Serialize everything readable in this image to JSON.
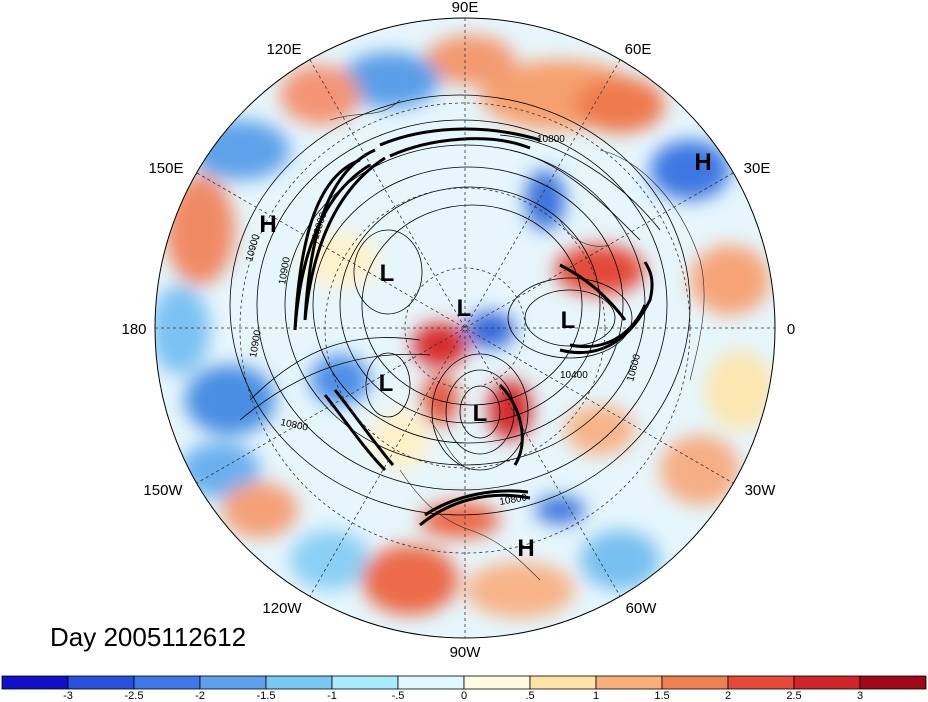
{
  "map": {
    "projection": "north-polar-stereographic",
    "longitude_labels": {
      "top": "90E",
      "top_left": "120E",
      "top_right": "60E",
      "upper_left": "150E",
      "upper_right": "30E",
      "left": "180",
      "right": "0",
      "lower_left": "150W",
      "lower_right": "30W",
      "bottom_left": "120W",
      "bottom_right": "60W",
      "bottom": "90W"
    },
    "contour_labels": [
      "10800",
      "10800",
      "10900",
      "10900",
      "10900",
      "10800",
      "10400",
      "10600",
      "10800"
    ],
    "pressure_centers": [
      {
        "label": "H",
        "kind": "high"
      },
      {
        "label": "H",
        "kind": "high"
      },
      {
        "label": "H",
        "kind": "high"
      },
      {
        "label": "L",
        "kind": "low"
      },
      {
        "label": "L",
        "kind": "low"
      },
      {
        "label": "L",
        "kind": "low"
      },
      {
        "label": "L",
        "kind": "low"
      },
      {
        "label": "L",
        "kind": "low"
      }
    ],
    "title": "Day 2005112612"
  },
  "colorbar": {
    "colors": [
      "#1010c8",
      "#2850e0",
      "#3c78ea",
      "#5ca0f0",
      "#78c8f4",
      "#a8ecfc",
      "#e0f8ff",
      "#fffae0",
      "#fce4a4",
      "#f8b078",
      "#f08050",
      "#e84838",
      "#d02428",
      "#a00818"
    ],
    "tick_labels": [
      "-3",
      "-2.5",
      "-2",
      "-1.5",
      "-1",
      "-.5",
      "0",
      ".5",
      "1",
      "1.5",
      "2",
      "2.5",
      "3"
    ]
  }
}
